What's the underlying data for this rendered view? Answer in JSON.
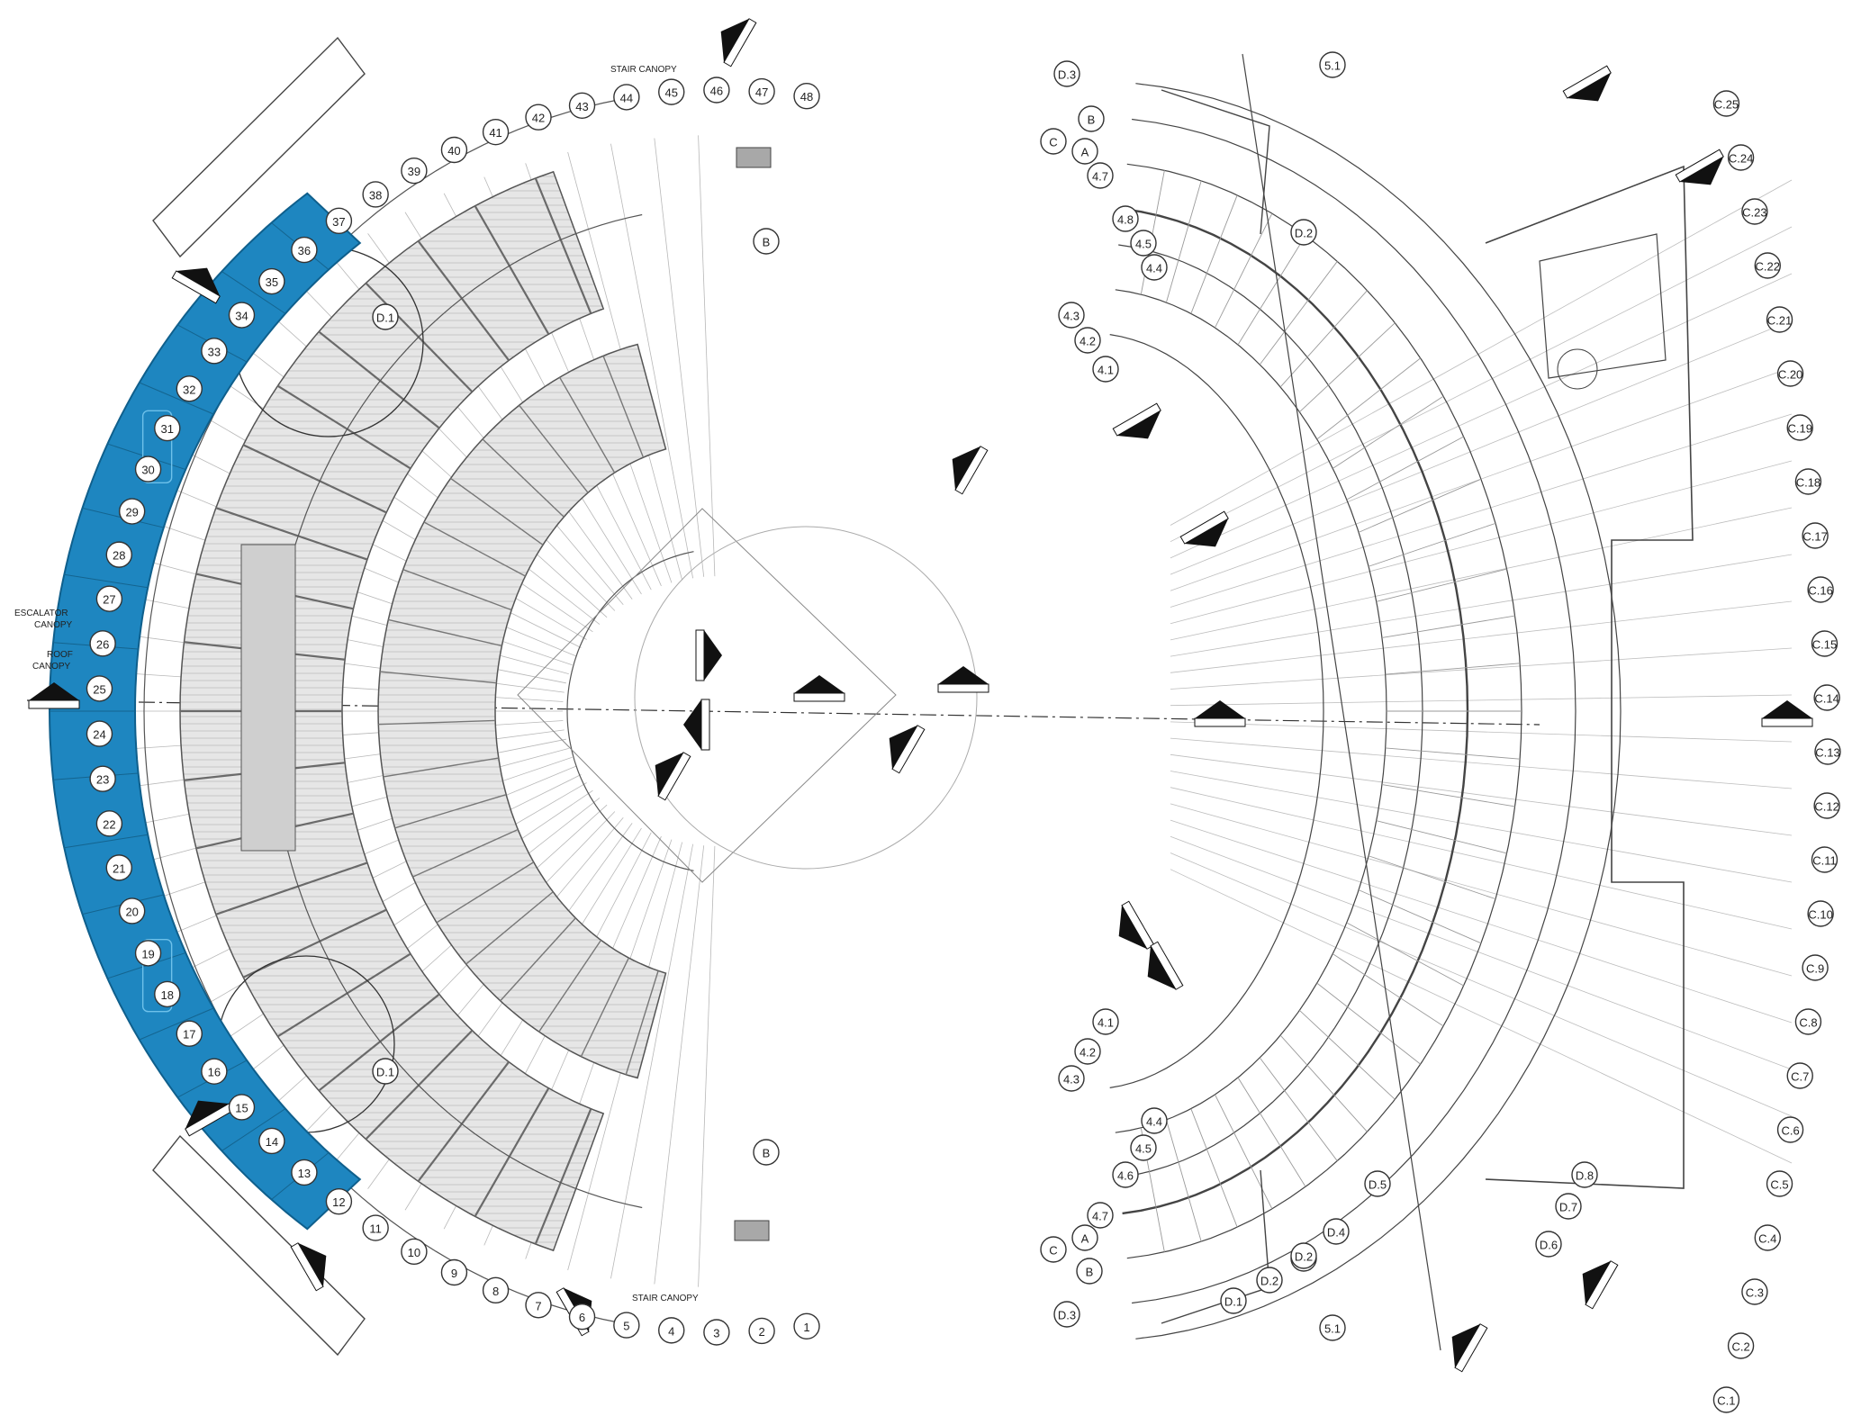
{
  "colors": {
    "highlight": "#1e86c0",
    "highlight_stroke": "#0f5f8c",
    "seating_fill": "#e4e4e4",
    "line": "#444444",
    "background": "#ffffff"
  },
  "annotations": {
    "stair_canopy_top": "STAIR CANOPY",
    "stair_canopy_bottom": "STAIR CANOPY",
    "escalator_canopy_1": "ESCALATOR",
    "escalator_canopy_2": "CANOPY",
    "roof_canopy_1": "ROOF",
    "roof_canopy_2": "CANOPY"
  },
  "grid_labels": {
    "outer_ring": [
      "1",
      "2",
      "3",
      "4",
      "5",
      "6",
      "7",
      "8",
      "9",
      "10",
      "11",
      "12",
      "13",
      "14",
      "15",
      "16",
      "17",
      "18",
      "19",
      "20",
      "21",
      "22",
      "23",
      "24",
      "25",
      "26",
      "27",
      "28",
      "29",
      "30",
      "31",
      "32",
      "33",
      "34",
      "35",
      "36",
      "37",
      "38",
      "39",
      "40",
      "41",
      "42",
      "43",
      "44",
      "45",
      "46",
      "47",
      "48"
    ],
    "letters_top": [
      "C",
      "A",
      "B",
      "D.3"
    ],
    "letters_bottom": [
      "C",
      "A",
      "B",
      "D.3"
    ],
    "inner_top": [
      "4.7",
      "4.8",
      "4.5",
      "4.4",
      "4.3",
      "4.2",
      "4.1"
    ],
    "inner_bottom": [
      "4.1",
      "4.2",
      "4.3",
      "4.4",
      "4.5",
      "4.6",
      "4.7"
    ],
    "right_c": [
      "C.1",
      "C.2",
      "C.3",
      "C.4",
      "C.5",
      "C.6",
      "C.7",
      "C.8",
      "C.9",
      "C.10",
      "C.11",
      "C.12",
      "C.13",
      "C.14",
      "C.15",
      "C.16",
      "C.17",
      "C.18",
      "C.19",
      "C.20",
      "C.21",
      "C.22",
      "C.23",
      "C.24",
      "C.25"
    ],
    "bottom_d": [
      "D.1",
      "D.2",
      "D.3",
      "D.4",
      "D.5",
      "D.6",
      "D.7",
      "D.8"
    ],
    "misc": [
      "B",
      "B",
      "D.1",
      "D.1",
      "D.2",
      "D.2",
      "5.1",
      "5.1"
    ]
  }
}
